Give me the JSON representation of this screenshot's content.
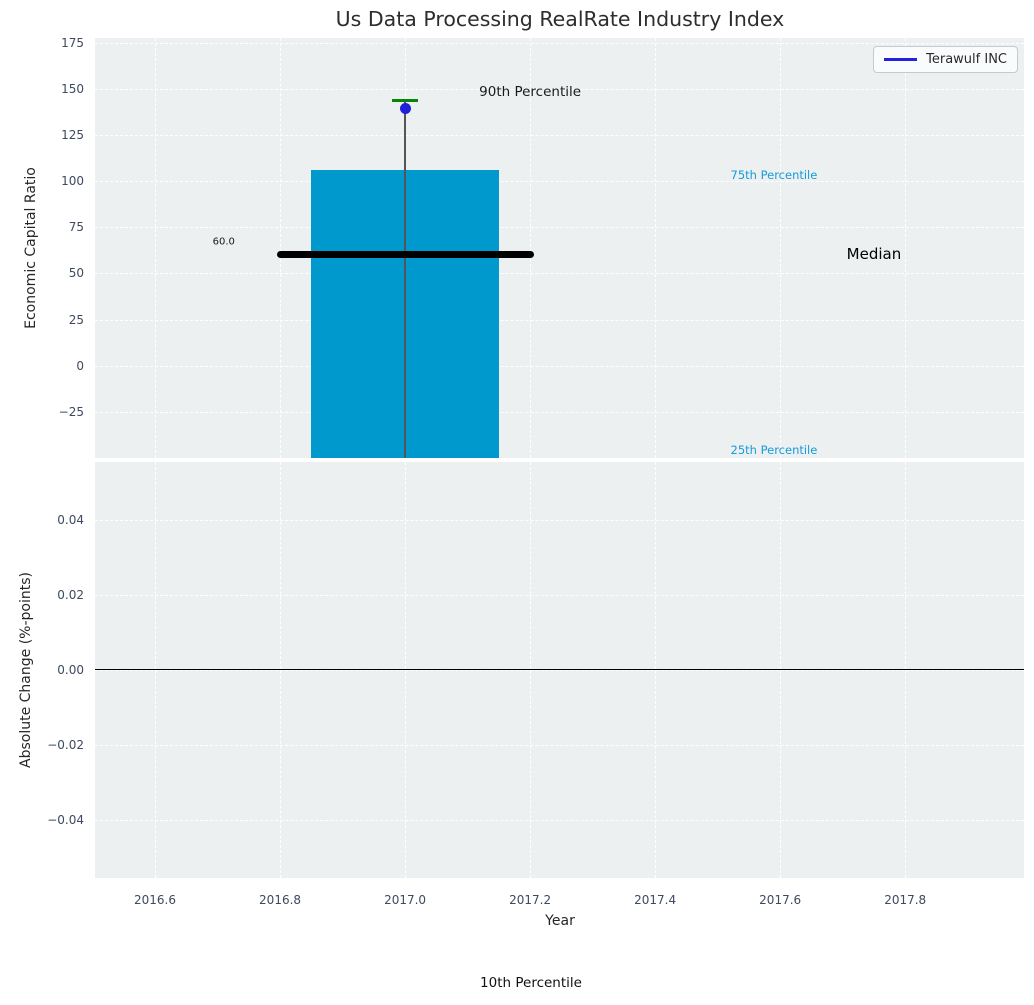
{
  "title": "Us Data Processing RealRate Industry Index",
  "legend": {
    "label": "Terawulf INC",
    "line_color": "#2222dd"
  },
  "footer_annotation": "10th Percentile",
  "colors": {
    "figure_bg": "#ffffff",
    "axes_bg": "#ecf0f1",
    "grid": "#ffffff",
    "tick_label": "#3d4a5f",
    "bar_cyan": "#0099cd",
    "percentile_label_cyan": "#169bd7",
    "median_black": "#000000",
    "stem_gray": "#555555",
    "cap_green": "#078507",
    "marker_blue": "#2020d8",
    "zero_line": "#000000",
    "text_dark": "#262626"
  },
  "x_axis": {
    "label": "Year",
    "xlim": [
      2016.504,
      2017.99
    ],
    "ticks": [
      {
        "v": 2016.6,
        "label": "2016.6"
      },
      {
        "v": 2016.8,
        "label": "2016.8"
      },
      {
        "v": 2017.0,
        "label": "2017.0"
      },
      {
        "v": 2017.2,
        "label": "2017.2"
      },
      {
        "v": 2017.4,
        "label": "2017.4"
      },
      {
        "v": 2017.6,
        "label": "2017.6"
      },
      {
        "v": 2017.8,
        "label": "2017.8"
      }
    ]
  },
  "chart_data": [
    {
      "type": "box-percentile",
      "title": "Us Data Processing RealRate Industry Index",
      "ylabel": "Economic Capital Ratio",
      "ylim": [
        -50,
        177.5
      ],
      "grid": true,
      "yticks": [
        {
          "v": 175,
          "label": "175"
        },
        {
          "v": 150,
          "label": "150"
        },
        {
          "v": 125,
          "label": "125"
        },
        {
          "v": 100,
          "label": "100"
        },
        {
          "v": 75,
          "label": "75"
        },
        {
          "v": 50,
          "label": "50"
        },
        {
          "v": 25,
          "label": "25"
        },
        {
          "v": 0,
          "label": "0"
        },
        {
          "v": -25,
          "label": "−25"
        }
      ],
      "box": {
        "x_left": 2016.85,
        "x_right": 2017.15,
        "top_p75": 106,
        "bottom": -50,
        "bottom_clipped": true,
        "color": "#0099cd"
      },
      "median": {
        "value": 60,
        "x_left": 2016.8,
        "x_right": 2017.2,
        "color": "#000000"
      },
      "whisker": {
        "x": 2017.0,
        "top": 143.8,
        "bottom": -50,
        "bottom_clipped": true,
        "color": "#555555"
      },
      "p90_cap": {
        "x": 2017.0,
        "value": 143.8,
        "color": "#078507"
      },
      "company_marker": {
        "name": "Terawulf INC",
        "x": 2017.0,
        "value": 139.4,
        "color": "#2020d8"
      },
      "annotations": [
        {
          "id": "p90-label",
          "text": "90th Percentile",
          "x": 2017.2,
          "y": 148.3,
          "color": "#1a1a1a",
          "size": 13.5
        },
        {
          "id": "p75-label",
          "text": "75th Percentile",
          "x": 2017.59,
          "y": 103.3,
          "color": "#169bd7",
          "size": 11.5
        },
        {
          "id": "median-label",
          "text": "Median",
          "x": 2017.75,
          "y": 60.3,
          "color": "#000000",
          "size": 15
        },
        {
          "id": "p25-label",
          "text": "25th Percentile",
          "x": 2017.59,
          "y": -45.6,
          "color": "#169bd7",
          "size": 11.5
        },
        {
          "id": "median-value-label",
          "text": "60.0",
          "x": 2016.71,
          "y": 67.0,
          "color": "#1a1a1a",
          "size": 10
        }
      ]
    },
    {
      "type": "line",
      "ylabel": "Absolute Change (%-points)",
      "xlabel": "Year",
      "ylim": [
        -0.0555,
        0.0555
      ],
      "grid": true,
      "zero_line": 0.0,
      "yticks": [
        {
          "v": 0.04,
          "label": "0.04"
        },
        {
          "v": 0.02,
          "label": "0.02"
        },
        {
          "v": 0.0,
          "label": "0.00"
        },
        {
          "v": -0.02,
          "label": "−0.02"
        },
        {
          "v": -0.04,
          "label": "−0.04"
        }
      ],
      "series": [
        {
          "name": "Terawulf INC",
          "color": "#2222dd",
          "x": [],
          "values": []
        }
      ]
    }
  ]
}
